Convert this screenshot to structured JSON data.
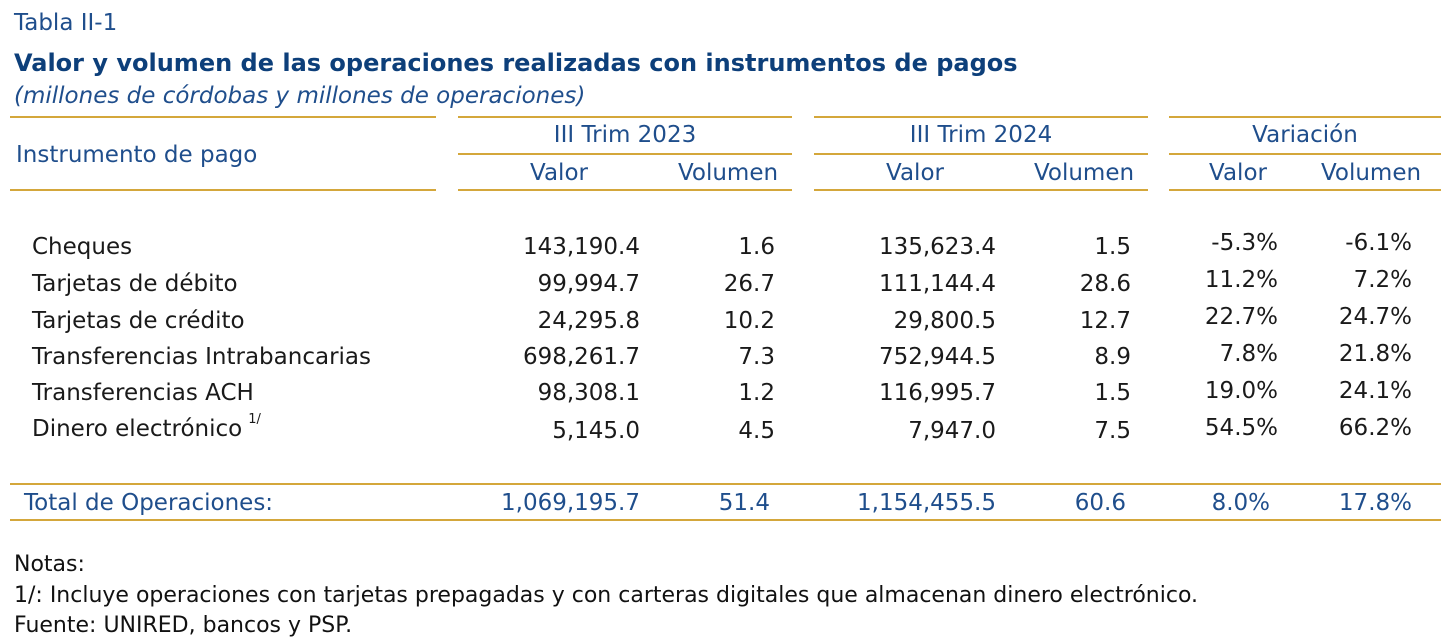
{
  "table_label": "Tabla II-1",
  "title": "Valor y volumen de las operaciones realizadas con instrumentos de pagos",
  "subtitle": "(millones de córdobas y millones de operaciones)",
  "header": {
    "instrument_col": "Instrumento de pago",
    "groups": [
      "III Trim 2023",
      "III Trim 2024",
      "Variación"
    ],
    "subcols": [
      "Valor",
      "Volumen",
      "Valor",
      "Volumen",
      "Valor",
      "Volumen"
    ]
  },
  "rows": [
    {
      "label": "Cheques",
      "footnote": "",
      "values": [
        "143,190.4",
        "1.6",
        "135,623.4",
        "1.5",
        "-5.3%",
        "-6.1%"
      ]
    },
    {
      "label": "Tarjetas de débito",
      "footnote": "",
      "values": [
        "99,994.7",
        "26.7",
        "111,144.4",
        "28.6",
        "11.2%",
        "7.2%"
      ]
    },
    {
      "label": "Tarjetas de crédito",
      "footnote": "",
      "values": [
        "24,295.8",
        "10.2",
        "29,800.5",
        "12.7",
        "22.7%",
        "24.7%"
      ]
    },
    {
      "label": "Transferencias Intrabancarias",
      "footnote": "",
      "values": [
        "698,261.7",
        "7.3",
        "752,944.5",
        "8.9",
        "7.8%",
        "21.8%"
      ]
    },
    {
      "label": "Transferencias ACH",
      "footnote": "",
      "values": [
        "98,308.1",
        "1.2",
        "116,995.7",
        "1.5",
        "19.0%",
        "24.1%"
      ]
    },
    {
      "label": "Dinero electrónico",
      "footnote": "1/",
      "values": [
        "5,145.0",
        "4.5",
        "7,947.0",
        "7.5",
        "54.5%",
        "66.2%"
      ]
    }
  ],
  "total": {
    "label": "Total de Operaciones:",
    "values": [
      "1,069,195.7",
      "51.4",
      "1,154,455.5",
      "60.6",
      "8.0%",
      "17.8%"
    ]
  },
  "notes": {
    "heading": "Notas:",
    "note1": "1/: Incluye operaciones con tarjetas prepagadas y con carteras digitales que almacenan dinero electrónico.",
    "source": "Fuente: UNIRED, bancos y PSP."
  },
  "colors": {
    "accent_rule": "#d4a73b",
    "header_text": "#1f4e8c",
    "title_text": "#0d3f7a"
  }
}
